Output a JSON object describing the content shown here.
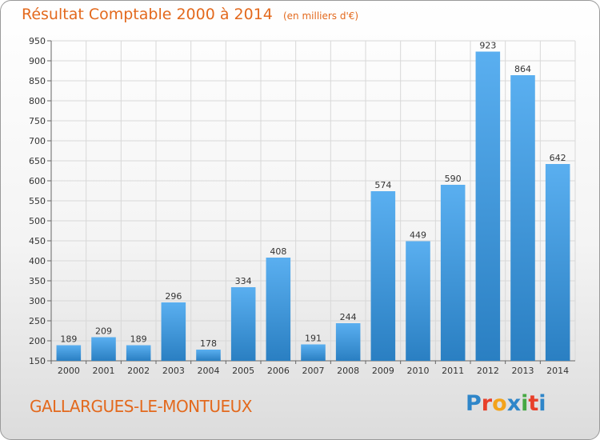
{
  "header": {
    "title": "Résultat Comptable 2000 à 2014",
    "subtitle": "(en milliers d'€)"
  },
  "footer": {
    "commune": "GALLARGUES-LE-MONTUEUX",
    "logo_text": "Proxiti",
    "logo_colors": [
      "#2f86c9",
      "#e8402a",
      "#f3a31b",
      "#2f86c9",
      "#46a843",
      "#e8402a",
      "#2f86c9"
    ]
  },
  "chart_data": {
    "type": "bar",
    "title": "Résultat Comptable 2000 à 2014",
    "subtitle": "(en milliers d'€)",
    "xlabel": "",
    "ylabel": "",
    "categories": [
      "2000",
      "2001",
      "2002",
      "2003",
      "2004",
      "2005",
      "2006",
      "2007",
      "2008",
      "2009",
      "2010",
      "2011",
      "2012",
      "2013",
      "2014"
    ],
    "values": [
      189,
      209,
      189,
      296,
      178,
      334,
      408,
      191,
      244,
      574,
      449,
      590,
      923,
      864,
      642
    ],
    "ylim": [
      150,
      950
    ],
    "yticks": [
      150,
      200,
      250,
      300,
      350,
      400,
      450,
      500,
      550,
      600,
      650,
      700,
      750,
      800,
      850,
      900,
      950
    ],
    "grid": true,
    "bar_color": "#3a95d8"
  }
}
